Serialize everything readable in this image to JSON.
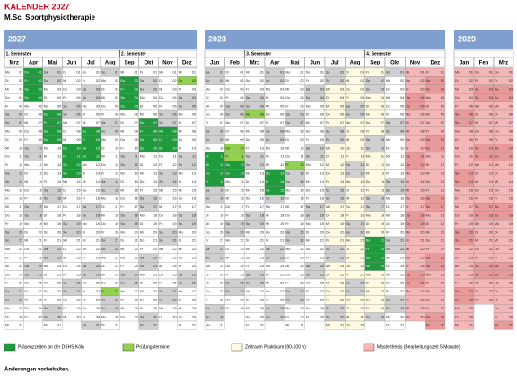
{
  "header": {
    "title": "KALENDER 2027",
    "subtitle": "M.Sc. Sportphysiotherapie"
  },
  "weekdays": [
    "Mo",
    "Di",
    "Mi",
    "Do",
    "Fr",
    "Sa",
    "So"
  ],
  "days": [
    "01",
    "02",
    "03",
    "04",
    "05",
    "06",
    "07",
    "08",
    "09",
    "10",
    "11",
    "12",
    "13",
    "14",
    "15",
    "16",
    "17",
    "18",
    "19",
    "20",
    "21",
    "22",
    "23",
    "24",
    "25",
    "26",
    "27",
    "28",
    "29",
    "30",
    "31"
  ],
  "colors": {
    "presence": "#1f9a3c",
    "exam": "#92d050",
    "practicum": "#fffbe3",
    "thesis": "#f4b6b6",
    "weekend": "#cfcfcf",
    "header": "#7f9fcf"
  },
  "semesters": [
    "1. Semester",
    "2. Semester",
    "3. Semester",
    "4. Semester"
  ],
  "years": [
    {
      "label": "2027",
      "months": [
        {
          "name": "Mrz",
          "start": 0,
          "length": 31
        },
        {
          "name": "Apr",
          "start": 3,
          "length": 30,
          "presence": [
            1,
            2,
            3,
            4
          ]
        },
        {
          "name": "Mai",
          "start": 5,
          "length": 31,
          "presence": [
            6,
            7,
            8,
            9
          ]
        },
        {
          "name": "Jun",
          "start": 1,
          "length": 30,
          "presence": [
            10,
            11,
            12,
            13
          ]
        },
        {
          "name": "Jul",
          "start": 3,
          "length": 31,
          "presence": [
            8,
            9,
            10,
            11
          ]
        },
        {
          "name": "Aug",
          "start": 6,
          "length": 31,
          "exam": [
            27
          ]
        },
        {
          "name": "Sep",
          "start": 2,
          "length": 30,
          "presence": [
            2,
            3,
            4,
            5
          ]
        },
        {
          "name": "Okt",
          "start": 4,
          "length": 31,
          "presence": [
            7,
            8,
            9,
            10
          ]
        },
        {
          "name": "Nov",
          "start": 0,
          "length": 30,
          "presence": [
            8,
            9,
            10
          ]
        },
        {
          "name": "Dez",
          "start": 2,
          "length": 31,
          "exam": [
            2
          ]
        }
      ]
    },
    {
      "label": "2028",
      "months": [
        {
          "name": "Jan",
          "start": 5,
          "length": 31,
          "presence": [
            11,
            12,
            13,
            14
          ]
        },
        {
          "name": "Feb",
          "start": 1,
          "length": 29,
          "presence": [
            12,
            13
          ],
          "exam": [
            10,
            11
          ]
        },
        {
          "name": "Mrz",
          "start": 2,
          "length": 31,
          "exam": [
            6
          ]
        },
        {
          "name": "Apr",
          "start": 5,
          "length": 30,
          "presence": [
            13,
            14,
            15
          ]
        },
        {
          "name": "Mai",
          "start": 0,
          "length": 31,
          "exam": [
            12
          ]
        },
        {
          "name": "Jun",
          "start": 3,
          "length": 30
        },
        {
          "name": "Jul",
          "start": 5,
          "length": 31,
          "period": "practicum"
        },
        {
          "name": "Aug",
          "start": 1,
          "length": 31,
          "period": "practicum"
        },
        {
          "name": "Sep",
          "start": 4,
          "length": 30,
          "period": "practicum",
          "presence": [
            21,
            22,
            23,
            24
          ]
        },
        {
          "name": "Okt",
          "start": 6,
          "length": 31
        },
        {
          "name": "Nov",
          "start": 2,
          "length": 30,
          "period": "thesis"
        },
        {
          "name": "Dez",
          "start": 4,
          "length": 31,
          "period": "thesis"
        }
      ]
    },
    {
      "label": "2029",
      "months": [
        {
          "name": "Jan",
          "start": 0,
          "length": 31,
          "period": "thesis"
        },
        {
          "name": "Feb",
          "start": 3,
          "length": 28,
          "period": "thesis"
        },
        {
          "name": "Mrz",
          "start": 3,
          "length": 31,
          "period": "thesis"
        }
      ]
    }
  ],
  "legend": [
    {
      "label": "Präsenzzeiten an der DSHS Köln",
      "key": "presence"
    },
    {
      "label": "Prüfungstermine",
      "key": "exam"
    },
    {
      "label": "Zeitraum Praktikum (90-100 h)",
      "key": "practicum"
    },
    {
      "label": "Masterthesis (Bearbeitungszeit 5 Monate)",
      "key": "thesis"
    }
  ],
  "footer": "Änderungen vorbehalten."
}
